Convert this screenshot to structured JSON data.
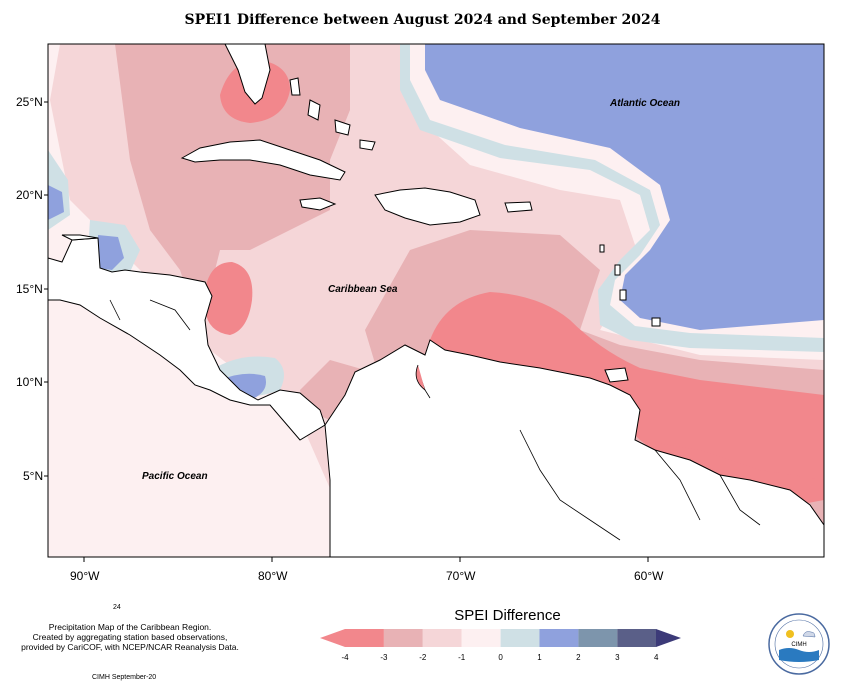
{
  "title": "SPEI1 Difference between August 2024 and September 2024",
  "lat_labels": [
    "25°N",
    "20°N",
    "15°N",
    "10°N",
    "5°N"
  ],
  "lon_labels": [
    "90°W",
    "80°W",
    "70°W",
    "60°W"
  ],
  "place_labels": {
    "atlantic": "Atlantic Ocean",
    "caribbean": "Caribbean Sea",
    "pacific": "Pacific Ocean"
  },
  "footnote": {
    "number": "24",
    "lines": [
      "Precipitation Map of the Caribbean Region.",
      "Created by aggregating station based observations,",
      "provided by CariCOF, with NCEP/NCAR Reanalysis Data."
    ],
    "credit": "CIMH September-20"
  },
  "legend": {
    "title": "SPEI Difference",
    "ticks": [
      "-4",
      "-3",
      "-2",
      "-1",
      "0",
      "1",
      "2",
      "3",
      "4"
    ],
    "colors": [
      "#f2878c",
      "#e8b2b5",
      "#f5d6d8",
      "#fdf0f1",
      "#cfe0e5",
      "#8fa1dd",
      "#7d95ac",
      "#5a5f88"
    ],
    "arrow_left_color": "#f2878c",
    "arrow_right_color": "#3c3a78"
  },
  "logo": {
    "text": "CIMH"
  }
}
